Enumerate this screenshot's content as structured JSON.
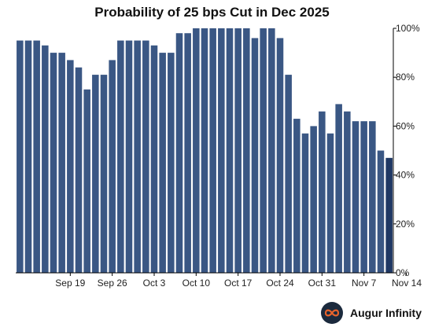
{
  "chart_data": {
    "type": "bar",
    "title": "Probability of 25 bps Cut in Dec 2025",
    "xlabel": "",
    "ylabel": "",
    "ylim": [
      0,
      100
    ],
    "y_ticks": [
      "0%",
      "20%",
      "40%",
      "60%",
      "80%",
      "100%"
    ],
    "x_ticks": [
      "Sep 19",
      "Sep 26",
      "Oct 3",
      "Oct 10",
      "Oct 17",
      "Oct 24",
      "Oct 31",
      "Nov 7",
      "Nov 14"
    ],
    "y_axis_position": "right",
    "grid": false,
    "legend": "none",
    "values": [
      95,
      95,
      95,
      93,
      90,
      90,
      87,
      84,
      75,
      81,
      81,
      87,
      95,
      95,
      95,
      95,
      93,
      90,
      90,
      98,
      98,
      100,
      100,
      100,
      100,
      100,
      100,
      100,
      96,
      100,
      100,
      96,
      81,
      63,
      57,
      60,
      66,
      57,
      69,
      66,
      62,
      62,
      62,
      50,
      47
    ],
    "highlight_last": true,
    "colors": {
      "bar": "#3a5784",
      "bar_last": "#1f3864",
      "axis": "#000000"
    }
  },
  "brand": {
    "name": "Augur Infinity",
    "logo_icon": "infinity-icon"
  }
}
